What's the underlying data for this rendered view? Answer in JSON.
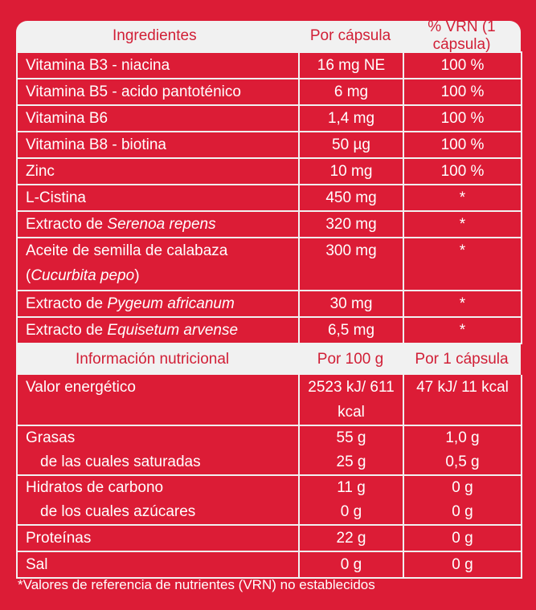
{
  "ingredients_header": {
    "col1": "Ingredientes",
    "col2": "Por cápsula",
    "col3": "% VRN (1 cápsula)"
  },
  "ingredients": [
    {
      "name": "Vitamina B3 - niacina",
      "amount": "16 mg NE",
      "vrn": "100 %"
    },
    {
      "name": "Vitamina B5 - acido pantoténico",
      "amount": "6 mg",
      "vrn": "100 %"
    },
    {
      "name": "Vitamina B6",
      "amount": "1,4 mg",
      "vrn": "100 %"
    },
    {
      "name": "Vitamina B8 - biotina",
      "amount": "50 µg",
      "vrn": "100 %"
    },
    {
      "name": "Zinc",
      "amount": "10 mg",
      "vrn": "100 %"
    },
    {
      "name": "L-Cistina",
      "amount": "450 mg",
      "vrn": "*"
    },
    {
      "name_prefix": "Extracto de ",
      "name_italic": "Serenoa repens",
      "amount": "320 mg",
      "vrn": "*"
    },
    {
      "name_prefix": "Aceite de semilla de calabaza (",
      "name_italic": "Cucurbita pepo",
      "name_suffix": ")",
      "amount": "300 mg",
      "vrn": "*"
    },
    {
      "name_prefix": "Extracto de ",
      "name_italic": "Pygeum africanum",
      "amount": "30 mg",
      "vrn": "*"
    },
    {
      "name_prefix": "Extracto de ",
      "name_italic": "Equisetum arvense",
      "amount": "6,5 mg",
      "vrn": "*"
    }
  ],
  "nutrition_header": {
    "col1": "Información nutricional",
    "col2": "Por 100 g",
    "col3": "Por 1 cápsula"
  },
  "nutrition": {
    "energy": {
      "label": "Valor energético",
      "per100": "2523 kJ/ 611 kcal",
      "percap": "47 kJ/ 11 kcal"
    },
    "fat": {
      "label": "Grasas",
      "per100": "55 g",
      "percap": "1,0 g"
    },
    "saturated": {
      "label": "de las cuales saturadas",
      "per100": "25 g",
      "percap": "0,5 g"
    },
    "carbs": {
      "label": "Hidratos de carbono",
      "per100": "11 g",
      "percap": "0 g"
    },
    "sugars": {
      "label": "de los cuales azúcares",
      "per100": "0 g",
      "percap": "0 g"
    },
    "protein": {
      "label": "Proteínas",
      "per100": "22 g",
      "percap": "0 g"
    },
    "salt": {
      "label": "Sal",
      "per100": "0 g",
      "percap": "0 g"
    }
  },
  "footnote": "*Valores de referencia de nutrientes (VRN) no establecidos",
  "colors": {
    "background": "#dc1c36",
    "header_bg": "#f1f1f1",
    "text": "#ffffff"
  }
}
